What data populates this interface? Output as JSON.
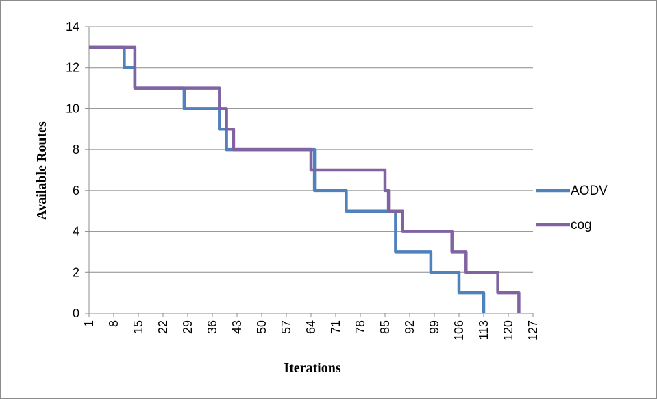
{
  "chart_data": {
    "type": "line",
    "title": "",
    "xlabel": "Iterations",
    "ylabel": "Available Routes",
    "xlim": [
      1,
      127
    ],
    "ylim": [
      0,
      14
    ],
    "y_ticks": [
      0,
      2,
      4,
      6,
      8,
      10,
      12,
      14
    ],
    "x_tick_labels": [
      "1",
      "8",
      "15",
      "22",
      "29",
      "36",
      "43",
      "50",
      "57",
      "64",
      "71",
      "78",
      "85",
      "92",
      "99",
      "106",
      "113",
      "120",
      "127"
    ],
    "grid": "horizontal",
    "legend_position": "right",
    "series": [
      {
        "name": "AODV",
        "color": "#4f81bd",
        "points": [
          [
            1,
            13
          ],
          [
            11,
            13
          ],
          [
            11,
            12
          ],
          [
            14,
            12
          ],
          [
            14,
            11
          ],
          [
            28,
            11
          ],
          [
            28,
            10
          ],
          [
            38,
            10
          ],
          [
            38,
            9
          ],
          [
            40,
            9
          ],
          [
            40,
            8
          ],
          [
            65,
            8
          ],
          [
            65,
            6
          ],
          [
            74,
            6
          ],
          [
            74,
            5
          ],
          [
            88,
            5
          ],
          [
            88,
            3
          ],
          [
            98,
            3
          ],
          [
            98,
            2
          ],
          [
            106,
            2
          ],
          [
            106,
            1
          ],
          [
            113,
            1
          ],
          [
            113,
            0
          ]
        ]
      },
      {
        "name": "cog",
        "color": "#8064a2",
        "points": [
          [
            1,
            13
          ],
          [
            14,
            13
          ],
          [
            14,
            11
          ],
          [
            38,
            11
          ],
          [
            38,
            10
          ],
          [
            40,
            10
          ],
          [
            40,
            9
          ],
          [
            42,
            9
          ],
          [
            42,
            8
          ],
          [
            64,
            8
          ],
          [
            64,
            7
          ],
          [
            85,
            7
          ],
          [
            85,
            6
          ],
          [
            86,
            6
          ],
          [
            86,
            5
          ],
          [
            90,
            5
          ],
          [
            90,
            4
          ],
          [
            104,
            4
          ],
          [
            104,
            3
          ],
          [
            108,
            3
          ],
          [
            108,
            2
          ],
          [
            117,
            2
          ],
          [
            117,
            1
          ],
          [
            123,
            1
          ],
          [
            123,
            0
          ]
        ]
      }
    ]
  }
}
